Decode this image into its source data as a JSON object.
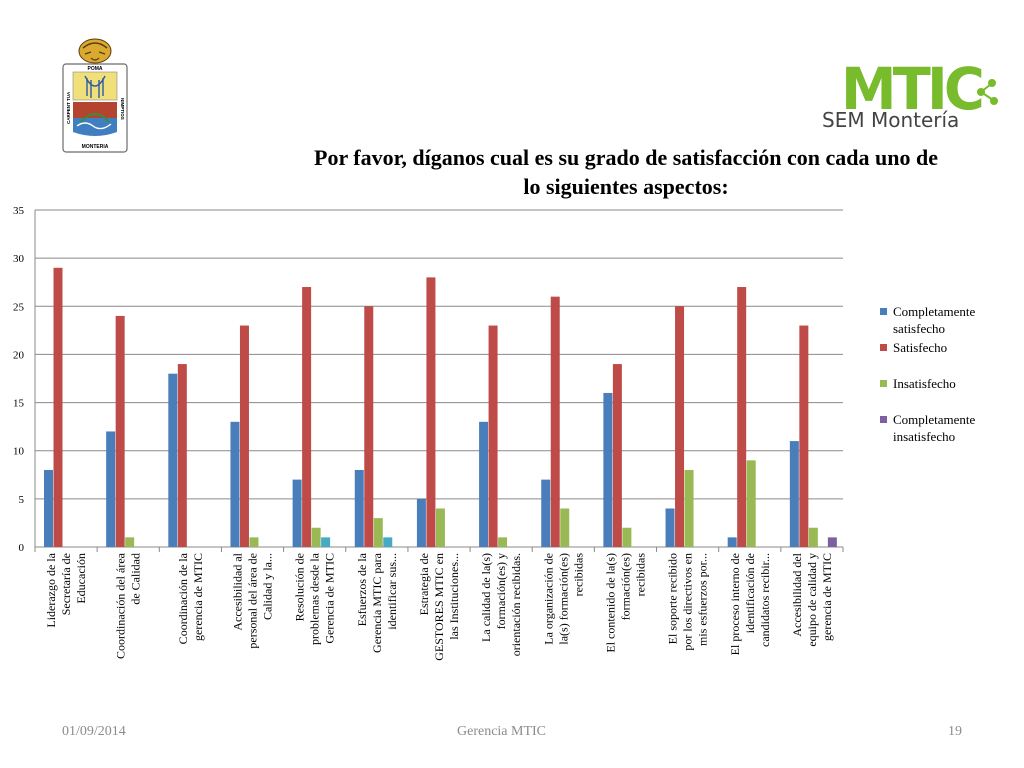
{
  "title_lines": [
    "Por favor, díganos cual es su grado de satisfacción con cada uno de",
    "lo siguientes aspectos:"
  ],
  "footer": {
    "date": "01/09/2014",
    "center": "Gerencia MTIC",
    "page": "19"
  },
  "logos": {
    "left_top": "POMA",
    "left_side_l": "CARPENT TUA",
    "left_side_r": "NIMPTIOS",
    "left_bottom": "MONTERIA",
    "right_brand": "MTIC",
    "right_sub": "SEM Montería"
  },
  "colors": {
    "s0": "#4a7ebb",
    "s1": "#be4b48",
    "s2": "#98b954",
    "s3": "#7d60a0",
    "s4": "#46aac5"
  },
  "chart_data": {
    "type": "bar",
    "ylim": [
      0,
      35
    ],
    "yticks": [
      0,
      5,
      10,
      15,
      20,
      25,
      30,
      35
    ],
    "grid": true,
    "legend_position": "right",
    "categories": [
      [
        "Liderazgo de la",
        "Secretaría de",
        "Educación"
      ],
      [
        "Coordinación del área",
        "de Calidad"
      ],
      [
        "Coordinación de la",
        "gerencia de MTIC"
      ],
      [
        "Accesibilidad al",
        "personal del área de",
        "Calidad y la..."
      ],
      [
        "Resolución de",
        "problemas desde la",
        "Gerencia de MTIC"
      ],
      [
        "Esfuerzos de la",
        "Gerencia MTIC para",
        "identificar sus..."
      ],
      [
        "Estrategia de",
        "GESTORES MTIC en",
        "las Instituciones..."
      ],
      [
        "La calidad de la(s)",
        "formación(es) y",
        "orientación recibidas."
      ],
      [
        "La organización de",
        "la(s) formación(es)",
        "recibidas"
      ],
      [
        "El contenido de la(s)",
        "formación(es)",
        "recibidas"
      ],
      [
        "El soporte recibido",
        "por los directivos en",
        "mis esfuerzos por..."
      ],
      [
        "El proceso interno de",
        "identificación de",
        "candidatos recibir..."
      ],
      [
        "Accesibilidad del",
        "equipo de calidad y",
        "gerencia de MTIC"
      ]
    ],
    "series": [
      {
        "name": "Completamente satisfecho",
        "legend_lines": [
          "Completamente",
          "satisfecho"
        ],
        "values": [
          8,
          12,
          18,
          13,
          7,
          8,
          5,
          13,
          7,
          16,
          4,
          1,
          11
        ]
      },
      {
        "name": "Satisfecho",
        "legend_lines": [
          "Satisfecho"
        ],
        "values": [
          29,
          24,
          19,
          23,
          27,
          25,
          28,
          23,
          26,
          19,
          25,
          27,
          23
        ]
      },
      {
        "name": "Insatisfecho",
        "legend_lines": [
          "Insatisfecho"
        ],
        "values": [
          0,
          1,
          0,
          1,
          2,
          3,
          4,
          1,
          4,
          2,
          8,
          9,
          2
        ]
      },
      {
        "name": "Completamente insatisfecho",
        "legend_lines": [
          "Completamente",
          "insatisfecho"
        ],
        "values": [
          0,
          0,
          0,
          0,
          0,
          0,
          0,
          0,
          0,
          0,
          0,
          0,
          1
        ]
      },
      {
        "values": [
          0,
          0,
          0,
          0,
          1,
          1,
          0,
          0,
          0,
          0,
          0,
          0,
          0
        ]
      }
    ]
  }
}
